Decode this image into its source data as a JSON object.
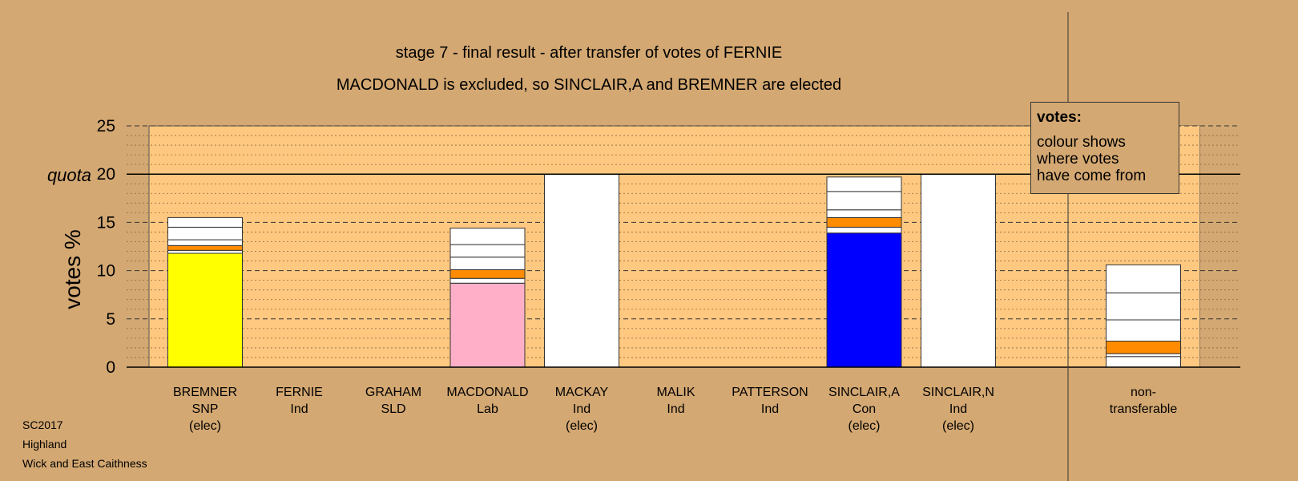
{
  "meta": {
    "election": "SC2017",
    "region": "Highland",
    "ward": "Wick and East Caithness"
  },
  "legend": {
    "title": "votes:",
    "lines": [
      "colour shows",
      "where votes",
      "have come from"
    ]
  },
  "chart_data": {
    "type": "bar",
    "stacked": true,
    "title": "stage 7 - final result - after transfer of votes of FERNIE",
    "subtitle": "MACDONALD is excluded, so SINCLAIR,A and BREMNER are elected",
    "ylabel": "votes %",
    "ylim": [
      0,
      25
    ],
    "yticks": [
      0,
      5,
      10,
      15,
      20,
      25
    ],
    "quota": {
      "label": "quota",
      "value": 20
    },
    "grid": true,
    "colors": {
      "background": "#D4A872",
      "plot": "#FFC880",
      "transfer": "#FFFFFF",
      "orange_transfer": "#FF8C00"
    },
    "candidates": [
      {
        "name": "BREMNER",
        "party": "SNP",
        "status": "(elec)",
        "segments": [
          {
            "value": 11.8,
            "color": "#FFFF00"
          },
          {
            "value": 0.3,
            "color": "#FFFFFF"
          },
          {
            "value": 0.5,
            "color": "#FF8C00"
          },
          {
            "value": 0.6,
            "color": "#FFFFFF"
          },
          {
            "value": 1.3,
            "color": "#FFFFFF"
          },
          {
            "value": 1.0,
            "color": "#FFFFFF"
          }
        ]
      },
      {
        "name": "FERNIE",
        "party": "Ind",
        "status": "",
        "segments": []
      },
      {
        "name": "GRAHAM",
        "party": "SLD",
        "status": "",
        "segments": []
      },
      {
        "name": "MACDONALD",
        "party": "Lab",
        "status": "",
        "segments": [
          {
            "value": 8.7,
            "color": "#FFB0C8"
          },
          {
            "value": 0.5,
            "color": "#FFFFFF"
          },
          {
            "value": 0.9,
            "color": "#FF8C00"
          },
          {
            "value": 1.3,
            "color": "#FFFFFF"
          },
          {
            "value": 1.3,
            "color": "#FFFFFF"
          },
          {
            "value": 1.7,
            "color": "#FFFFFF"
          }
        ]
      },
      {
        "name": "MACKAY",
        "party": "Ind",
        "status": "(elec)",
        "segments": [
          {
            "value": 20.0,
            "color": "#FFFFFF"
          }
        ]
      },
      {
        "name": "MALIK",
        "party": "Ind",
        "status": "",
        "segments": []
      },
      {
        "name": "PATTERSON",
        "party": "Ind",
        "status": "",
        "segments": []
      },
      {
        "name": "SINCLAIR,A",
        "party": "Con",
        "status": "(elec)",
        "segments": [
          {
            "value": 13.9,
            "color": "#0000FF"
          },
          {
            "value": 0.6,
            "color": "#FFFFFF"
          },
          {
            "value": 1.0,
            "color": "#FF8C00"
          },
          {
            "value": 0.8,
            "color": "#FFFFFF"
          },
          {
            "value": 1.9,
            "color": "#FFFFFF"
          },
          {
            "value": 1.5,
            "color": "#FFFFFF"
          }
        ]
      },
      {
        "name": "SINCLAIR,N",
        "party": "Ind",
        "status": "(elec)",
        "segments": [
          {
            "value": 20.0,
            "color": "#FFFFFF"
          }
        ]
      }
    ],
    "nontransferable": {
      "label_lines": [
        "non-",
        "transferable"
      ],
      "segments": [
        {
          "value": 1.1,
          "color": "#FFFFFF"
        },
        {
          "value": 0.3,
          "color": "#FFFFFF"
        },
        {
          "value": 1.3,
          "color": "#FF8C00"
        },
        {
          "value": 2.2,
          "color": "#FFFFFF"
        },
        {
          "value": 2.8,
          "color": "#FFFFFF"
        },
        {
          "value": 2.9,
          "color": "#FFFFFF"
        }
      ]
    }
  }
}
